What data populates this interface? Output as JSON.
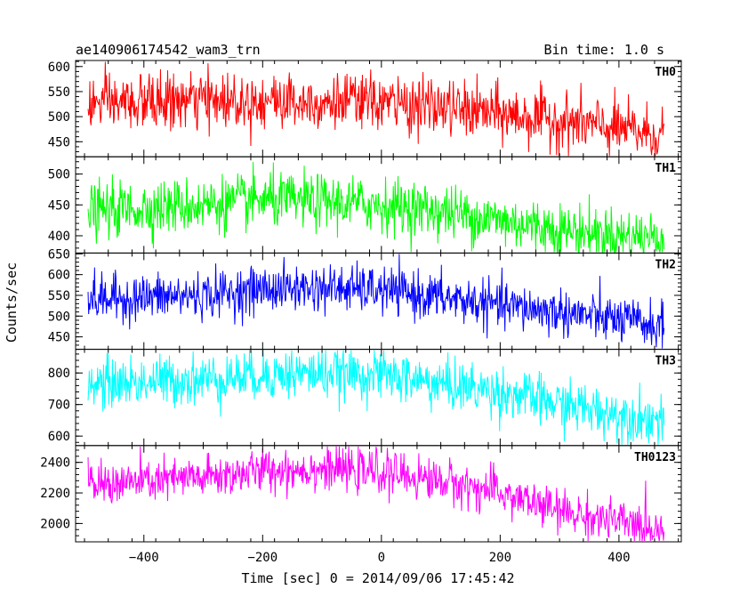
{
  "header": {
    "title": "ae140906174542_wam3_trn",
    "bin_time": "Bin time: 1.0 s"
  },
  "chart_data": {
    "type": "line",
    "xlabel": "Time [sec] 0 = 2014/09/06 17:45:42",
    "ylabel": "Counts/sec",
    "xlim": [
      -515,
      505
    ],
    "xticks": [
      -400,
      -200,
      0,
      200,
      400
    ],
    "x_range": [
      -494,
      476
    ],
    "bin_time_s": 1.0,
    "panels": [
      {
        "name": "TH0",
        "color": "#ff0000",
        "ylim": [
          420,
          612
        ],
        "yticks": [
          450,
          500,
          550,
          600
        ],
        "trend": [
          [
            -494,
            525
          ],
          [
            -300,
            532
          ],
          [
            -200,
            533
          ],
          [
            0,
            528
          ],
          [
            100,
            518
          ],
          [
            200,
            505
          ],
          [
            300,
            492
          ],
          [
            400,
            475
          ],
          [
            476,
            462
          ]
        ],
        "noise_amplitude": 28
      },
      {
        "name": "TH1",
        "color": "#00ff00",
        "ylim": [
          372,
          528
        ],
        "yticks": [
          400,
          450,
          500
        ],
        "trend": [
          [
            -494,
            440
          ],
          [
            -300,
            450
          ],
          [
            -200,
            458
          ],
          [
            -100,
            455
          ],
          [
            0,
            450
          ],
          [
            100,
            440
          ],
          [
            200,
            425
          ],
          [
            300,
            410
          ],
          [
            400,
            400
          ],
          [
            476,
            398
          ]
        ],
        "noise_amplitude": 22
      },
      {
        "name": "TH2",
        "color": "#0000ff",
        "ylim": [
          420,
          652
        ],
        "yticks": [
          450,
          500,
          550,
          600,
          650
        ],
        "trend": [
          [
            -494,
            540
          ],
          [
            -300,
            550
          ],
          [
            -200,
            565
          ],
          [
            -100,
            568
          ],
          [
            0,
            562
          ],
          [
            100,
            545
          ],
          [
            200,
            525
          ],
          [
            300,
            510
          ],
          [
            400,
            490
          ],
          [
            476,
            475
          ]
        ],
        "noise_amplitude": 28
      },
      {
        "name": "TH3",
        "color": "#00ffff",
        "ylim": [
          570,
          875
        ],
        "yticks": [
          600,
          700,
          800
        ],
        "trend": [
          [
            -494,
            765
          ],
          [
            -300,
            780
          ],
          [
            -200,
            795
          ],
          [
            -100,
            800
          ],
          [
            0,
            795
          ],
          [
            100,
            765
          ],
          [
            200,
            740
          ],
          [
            300,
            700
          ],
          [
            400,
            670
          ],
          [
            476,
            650
          ]
        ],
        "noise_amplitude": 40
      },
      {
        "name": "TH0123",
        "color": "#ff00ff",
        "ylim": [
          1880,
          2510
        ],
        "yticks": [
          2000,
          2200,
          2400
        ],
        "trend": [
          [
            -494,
            2250
          ],
          [
            -300,
            2300
          ],
          [
            -200,
            2345
          ],
          [
            -100,
            2360
          ],
          [
            0,
            2335
          ],
          [
            100,
            2280
          ],
          [
            200,
            2200
          ],
          [
            300,
            2080
          ],
          [
            400,
            2010
          ],
          [
            476,
            1960
          ]
        ],
        "noise_amplitude": 70
      }
    ]
  }
}
